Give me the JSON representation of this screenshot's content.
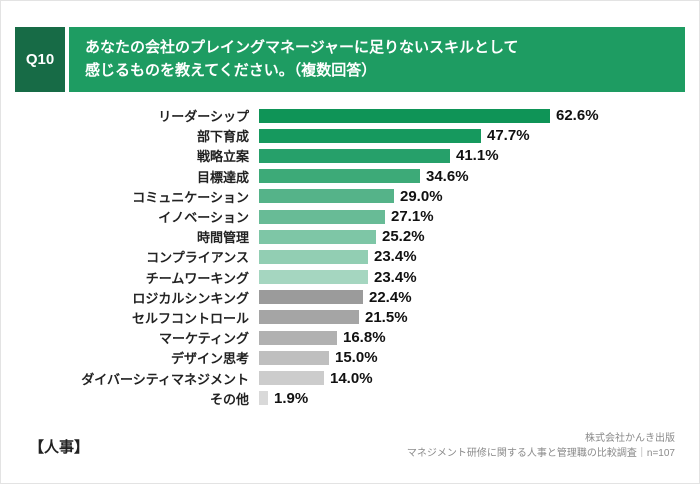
{
  "header": {
    "q_label": "Q10",
    "title_line1": "あなたの会社のプレイングマネージャーに足りないスキルとして",
    "title_line2": "感じるものを教えてください。（複数回答）"
  },
  "chart_data": {
    "type": "bar",
    "orientation": "horizontal",
    "title": "あなたの会社のプレイングマネージャーに足りないスキルとして感じるもの（複数回答）",
    "xlim": [
      0,
      65
    ],
    "grid": false,
    "legend": "none",
    "categories": [
      "リーダーシップ",
      "部下育成",
      "戦略立案",
      "目標達成",
      "コミュニケーション",
      "イノベーション",
      "時間管理",
      "コンプライアンス",
      "チームワーキング",
      "ロジカルシンキング",
      "セルフコントロール",
      "マーケティング",
      "デザイン思考",
      "ダイバーシティマネジメント",
      "その他"
    ],
    "values": [
      62.6,
      47.7,
      41.1,
      34.6,
      29.0,
      27.1,
      25.2,
      23.4,
      23.4,
      22.4,
      21.5,
      16.8,
      15.0,
      14.0,
      1.9
    ],
    "value_labels": [
      "62.6%",
      "47.7%",
      "41.1%",
      "34.6%",
      "29.0%",
      "27.1%",
      "25.2%",
      "23.4%",
      "23.4%",
      "22.4%",
      "21.5%",
      "16.8%",
      "15.0%",
      "14.0%",
      "1.9%"
    ],
    "bar_colors": [
      "#0f9457",
      "#16995e",
      "#26a06a",
      "#3daa78",
      "#55b389",
      "#68bb96",
      "#7ec6a6",
      "#92ceb3",
      "#a5d6c0",
      "#9b9b9b",
      "#a5a5a5",
      "#b1b1b1",
      "#bfbfbf",
      "#cccccc",
      "#d9d9d9"
    ]
  },
  "footer": {
    "left": "【人事】",
    "right_line1": "株式会社かんき出版",
    "right_line2": "マネジメント研修に関する人事と管理職の比較調査｜n=107"
  },
  "colors": {
    "q_badge": "#176b46",
    "q_banner": "#1e9c62"
  }
}
